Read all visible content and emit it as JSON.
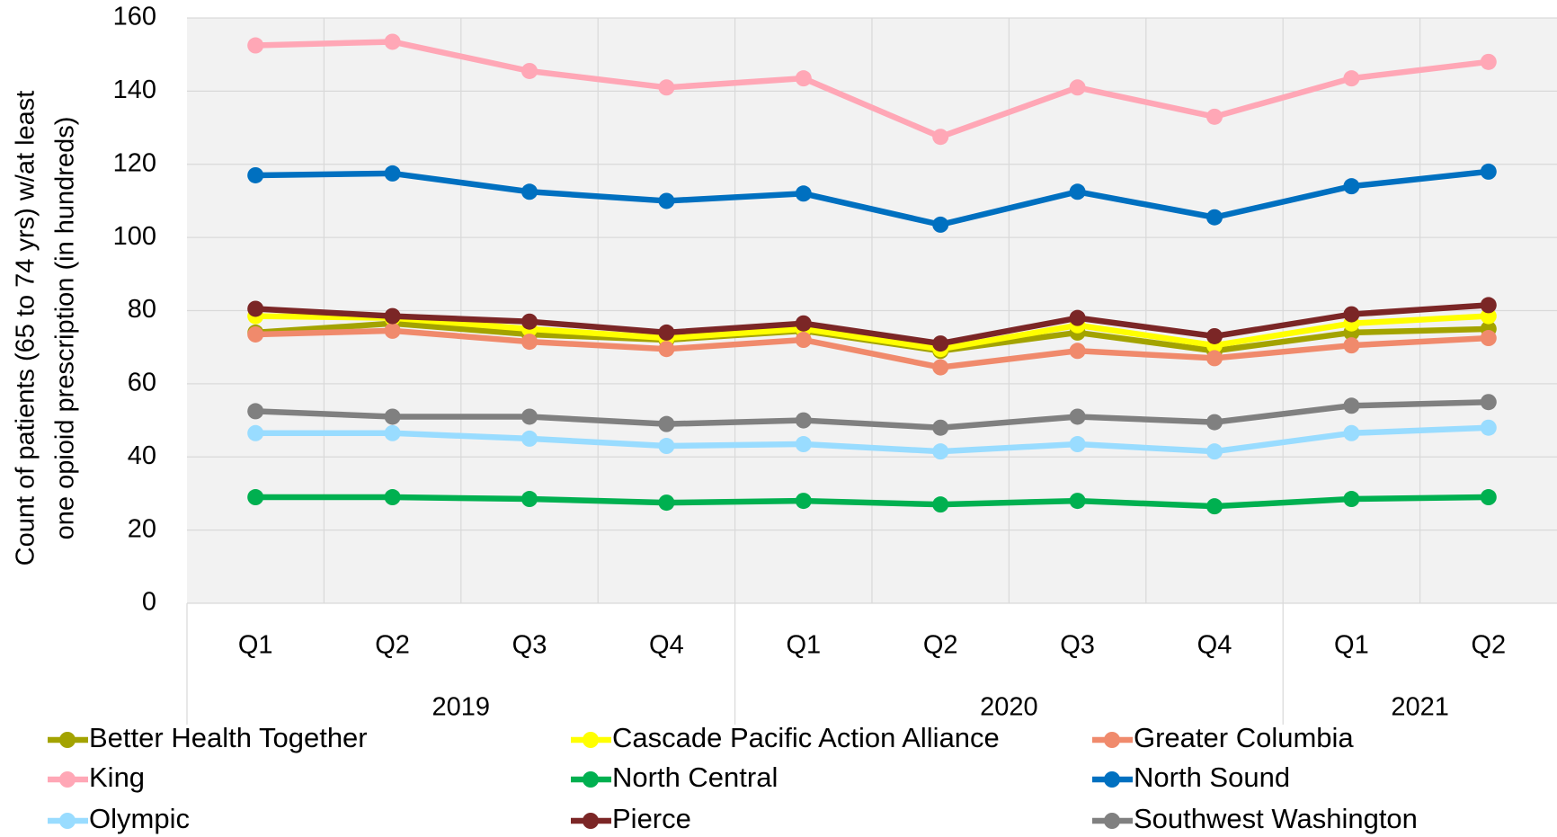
{
  "chart_data": {
    "type": "line",
    "y_label": [
      "Count of patients (65 to 74 yrs) w/at least",
      "one opioid prescription (in hundreds)"
    ],
    "categories": [
      "Q1",
      "Q2",
      "Q3",
      "Q4",
      "Q1",
      "Q2",
      "Q3",
      "Q4",
      "Q1",
      "Q2"
    ],
    "groups": [
      {
        "label": "2019",
        "span": 4
      },
      {
        "label": "2020",
        "span": 4
      },
      {
        "label": "2021",
        "span": 2
      }
    ],
    "ylim": [
      0,
      160
    ],
    "yticks": [
      0,
      20,
      40,
      60,
      80,
      100,
      120,
      140,
      160
    ],
    "grid": true,
    "legend": "bottom",
    "series": [
      {
        "name": "Better Health Together",
        "color": "#a3a300",
        "values": [
          74,
          76.5,
          73.5,
          72,
          74.5,
          69,
          74,
          69,
          74,
          75
        ]
      },
      {
        "name": "Cascade Pacific Action Alliance",
        "color": "#ffff00",
        "values": [
          78.5,
          78,
          75,
          72.5,
          75,
          69.5,
          76,
          70.5,
          76.5,
          78.5
        ]
      },
      {
        "name": "Greater Columbia",
        "color": "#f08a6c",
        "values": [
          73.5,
          74.5,
          71.5,
          69.5,
          72,
          64.5,
          69,
          67,
          70.5,
          72.5
        ]
      },
      {
        "name": "King",
        "color": "#ffa7b6",
        "values": [
          152.5,
          153.5,
          145.5,
          141,
          143.5,
          127.5,
          141,
          133,
          143.5,
          148
        ]
      },
      {
        "name": "North Central",
        "color": "#00b050",
        "values": [
          29,
          29,
          28.5,
          27.5,
          28,
          27,
          28,
          26.5,
          28.5,
          29
        ]
      },
      {
        "name": "North Sound",
        "color": "#0070c0",
        "values": [
          117,
          117.5,
          112.5,
          110,
          112,
          103.5,
          112.5,
          105.5,
          114,
          118
        ]
      },
      {
        "name": "Olympic",
        "color": "#99dcff",
        "values": [
          46.5,
          46.5,
          45,
          43,
          43.5,
          41.5,
          43.5,
          41.5,
          46.5,
          48
        ]
      },
      {
        "name": "Pierce",
        "color": "#7b2626",
        "values": [
          80.5,
          78.5,
          77,
          74,
          76.5,
          71,
          78,
          73,
          79,
          81.5
        ]
      },
      {
        "name": "Southwest Washington",
        "color": "#808080",
        "values": [
          52.5,
          51,
          51,
          49,
          50,
          48,
          51,
          49.5,
          54,
          55
        ]
      }
    ]
  }
}
